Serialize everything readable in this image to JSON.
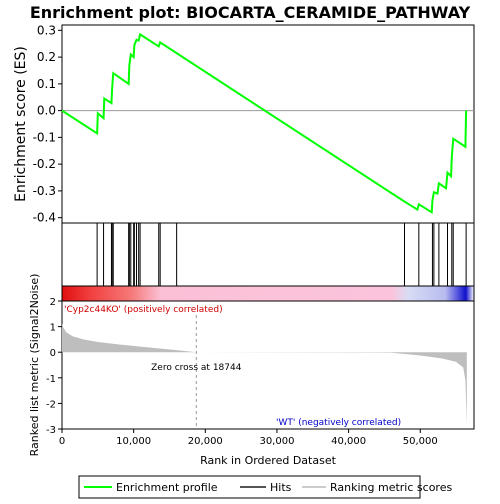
{
  "title": "Enrichment plot: BIOCARTA_CERAMIDE_PATHWAY",
  "colors": {
    "es_line": "#00ff00",
    "hits": "#000000",
    "metric_fill": "#bebebe",
    "zero_line": "#999999",
    "pos_label": "#d00000",
    "neg_label": "#0000c8"
  },
  "chart_data": {
    "type": "line",
    "es_panel": {
      "ylabel": "Enrichment score (ES)",
      "ylim": [
        -0.42,
        0.32
      ],
      "yticks": [
        -0.4,
        -0.3,
        -0.2,
        -0.1,
        0.0,
        0.1,
        0.2,
        0.3
      ],
      "xlim": [
        0,
        57500
      ],
      "points": [
        [
          0,
          0.0
        ],
        [
          4900,
          -0.085
        ],
        [
          5000,
          -0.01
        ],
        [
          5800,
          -0.028
        ],
        [
          5900,
          0.045
        ],
        [
          6900,
          0.028
        ],
        [
          7000,
          0.085
        ],
        [
          7150,
          0.14
        ],
        [
          9300,
          0.1
        ],
        [
          9400,
          0.17
        ],
        [
          9600,
          0.21
        ],
        [
          10000,
          0.2
        ],
        [
          10100,
          0.245
        ],
        [
          10400,
          0.265
        ],
        [
          10700,
          0.262
        ],
        [
          10900,
          0.285
        ],
        [
          13500,
          0.24
        ],
        [
          13700,
          0.255
        ],
        [
          47800,
          -0.34
        ],
        [
          49600,
          -0.37
        ],
        [
          49800,
          -0.35
        ],
        [
          51600,
          -0.38
        ],
        [
          51700,
          -0.335
        ],
        [
          51900,
          -0.305
        ],
        [
          52400,
          -0.31
        ],
        [
          52600,
          -0.272
        ],
        [
          53600,
          -0.29
        ],
        [
          53800,
          -0.232
        ],
        [
          54300,
          -0.245
        ],
        [
          54400,
          -0.175
        ],
        [
          54600,
          -0.105
        ],
        [
          56300,
          -0.135
        ],
        [
          56400,
          0.0
        ]
      ]
    },
    "hits": [
      4900,
      5800,
      6900,
      7000,
      7150,
      9300,
      9400,
      9600,
      10000,
      10100,
      10400,
      10700,
      10900,
      13500,
      13700,
      16000,
      47800,
      49800,
      51700,
      51900,
      52600,
      53800,
      54400,
      54600,
      56400
    ],
    "legend": [
      "Enrichment profile",
      "Hits",
      "Ranking metric scores"
    ],
    "metric_panel": {
      "ylabel": "Ranked list metric (Signal2Noise)",
      "xlabel": "Rank in Ordered Dataset",
      "ylim": [
        -3,
        2
      ],
      "yticks": [
        -3,
        -2,
        -1,
        0,
        1,
        2
      ],
      "xticks": [
        0,
        10000,
        20000,
        30000,
        40000,
        50000
      ],
      "xlim": [
        0,
        57500
      ],
      "zero_cross_rank": 18744,
      "zero_cross_text": "Zero cross at 18744",
      "pos_label": "'Cyp2c44KO' (positively correlated)",
      "neg_label": "'WT' (negatively correlated)",
      "curve": [
        [
          0,
          1.12
        ],
        [
          200,
          0.95
        ],
        [
          600,
          0.78
        ],
        [
          1500,
          0.62
        ],
        [
          3000,
          0.5
        ],
        [
          5000,
          0.4
        ],
        [
          8000,
          0.3
        ],
        [
          12000,
          0.19
        ],
        [
          16000,
          0.08
        ],
        [
          18744,
          0.0
        ],
        [
          46000,
          -0.02
        ],
        [
          50000,
          -0.13
        ],
        [
          53000,
          -0.24
        ],
        [
          55000,
          -0.38
        ],
        [
          56000,
          -0.6
        ],
        [
          56300,
          -1.1
        ],
        [
          56500,
          -2.85
        ]
      ]
    }
  }
}
